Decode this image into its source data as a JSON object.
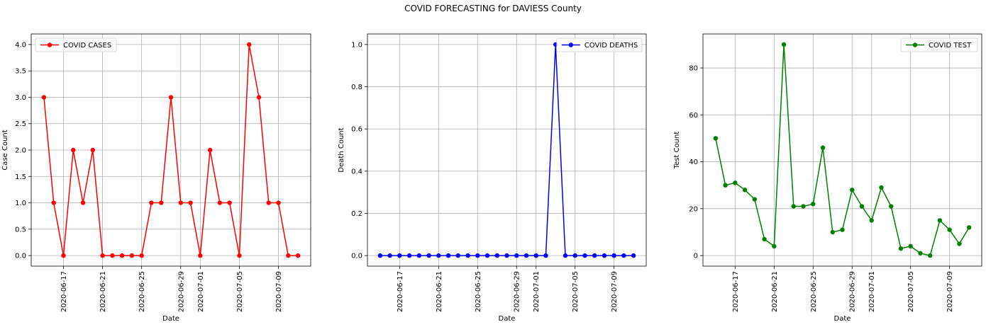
{
  "figure": {
    "title": "COVID FORECASTING for DAVIESS County"
  },
  "chart_data": [
    {
      "type": "line",
      "xlabel": "Date",
      "ylabel": "Case Count",
      "color": "#ff0000",
      "legend": {
        "label": "COVID CASES",
        "placement": "upper-left"
      },
      "grid": true,
      "x_start": "2020-06-15",
      "x_tick_labels": [
        "2020-06-17",
        "2020-06-21",
        "2020-06-25",
        "2020-06-29",
        "2020-07-01",
        "2020-07-05",
        "2020-07-09"
      ],
      "ylim": [
        -0.2,
        4.2
      ],
      "y_ticks": [
        0.0,
        0.5,
        1.0,
        1.5,
        2.0,
        2.5,
        3.0,
        3.5,
        4.0
      ],
      "y_tick_labels": [
        "0.0",
        "0.5",
        "1.0",
        "1.5",
        "2.0",
        "2.5",
        "3.0",
        "3.5",
        "4.0"
      ],
      "values": [
        3,
        1,
        0,
        2,
        1,
        2,
        0,
        0,
        0,
        0,
        0,
        1,
        1,
        3,
        1,
        1,
        0,
        2,
        1,
        1,
        0,
        4,
        3,
        1,
        1,
        0,
        0
      ]
    },
    {
      "type": "line",
      "xlabel": "Date",
      "ylabel": "Death Count",
      "color": "#0000ff",
      "legend": {
        "label": "COVID DEATHS",
        "placement": "upper-right"
      },
      "grid": true,
      "x_start": "2020-06-15",
      "x_tick_labels": [
        "2020-06-17",
        "2020-06-21",
        "2020-06-25",
        "2020-06-29",
        "2020-07-01",
        "2020-07-05",
        "2020-07-09"
      ],
      "ylim": [
        -0.05,
        1.05
      ],
      "y_ticks": [
        0.0,
        0.2,
        0.4,
        0.6,
        0.8,
        1.0
      ],
      "y_tick_labels": [
        "0.0",
        "0.2",
        "0.4",
        "0.6",
        "0.8",
        "1.0"
      ],
      "values": [
        0,
        0,
        0,
        0,
        0,
        0,
        0,
        0,
        0,
        0,
        0,
        0,
        0,
        0,
        0,
        0,
        0,
        0,
        1,
        0,
        0,
        0,
        0,
        0,
        0,
        0,
        0
      ]
    },
    {
      "type": "line",
      "xlabel": "Date",
      "ylabel": "Test Count",
      "color": "#008000",
      "legend": {
        "label": "COVID TEST",
        "placement": "upper-right"
      },
      "grid": true,
      "x_start": "2020-06-15",
      "x_tick_labels": [
        "2020-06-17",
        "2020-06-21",
        "2020-06-25",
        "2020-06-29",
        "2020-07-01",
        "2020-07-05",
        "2020-07-09"
      ],
      "ylim": [
        -4.5,
        94.5
      ],
      "y_ticks": [
        0,
        20,
        40,
        60,
        80
      ],
      "y_tick_labels": [
        "0",
        "20",
        "40",
        "60",
        "80"
      ],
      "values": [
        50,
        30,
        31,
        28,
        24,
        7,
        4,
        90,
        21,
        21,
        22,
        46,
        10,
        11,
        28,
        21,
        15,
        29,
        21,
        3,
        4,
        1,
        0,
        15,
        11,
        5,
        12
      ]
    }
  ]
}
